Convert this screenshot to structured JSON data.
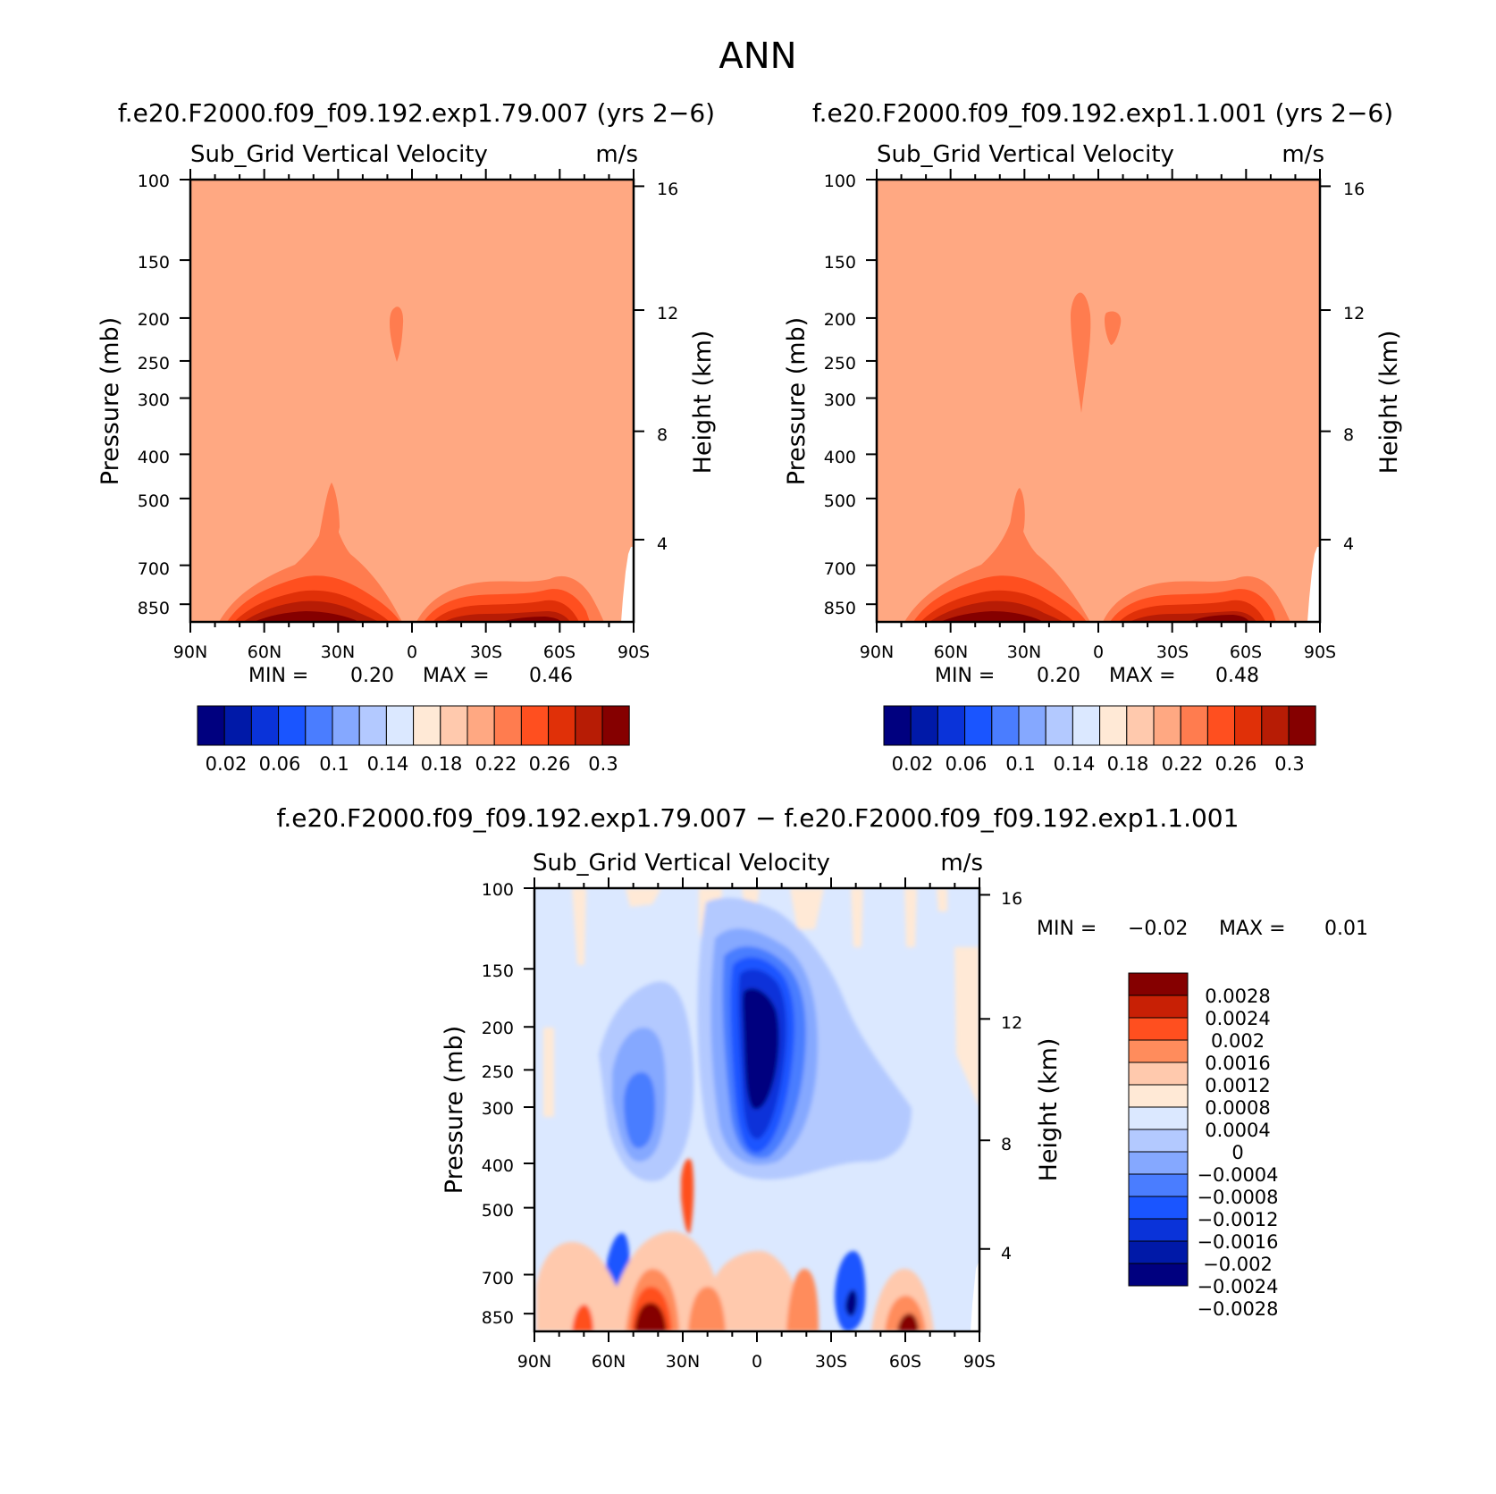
{
  "title": "ANN",
  "colors": {
    "blue_red_16": [
      "#00007f",
      "#0019a8",
      "#0a33d9",
      "#1a55ff",
      "#4a7dff",
      "#85a8ff",
      "#b3c9ff",
      "#dbe8ff",
      "#ffe9d6",
      "#ffc9ad",
      "#ffa882",
      "#ff7c4f",
      "#ff4f1f",
      "#e03008",
      "#b71c05",
      "#850000"
    ],
    "diff_14": [
      "#00007f",
      "#0019a8",
      "#0a33d9",
      "#1a55ff",
      "#4a7dff",
      "#85a8ff",
      "#b3c9ff",
      "#dbe8ff",
      "#ffe9d6",
      "#ffc9ad",
      "#ff8c5c",
      "#ff4f1f",
      "#c82005",
      "#850000"
    ]
  },
  "chart_data": [
    {
      "type": "heatmap",
      "title": "f.e20.F2000.f09_f09.192.exp1.79.007 (yrs 2−6)",
      "field": "Sub_Grid Vertical Velocity",
      "units": "m/s",
      "xlabel": "",
      "ylabel": "Pressure (mb)",
      "y2label": "Height (km)",
      "xticks": [
        "90N",
        "60N",
        "30N",
        "0",
        "30S",
        "60S",
        "90S"
      ],
      "yticks": [
        "100",
        "150",
        "200",
        "250",
        "300",
        "400",
        "500",
        "700",
        "850"
      ],
      "y2ticks": [
        "16",
        "12",
        "8",
        "4"
      ],
      "ylim": [
        100,
        1000
      ],
      "y_scale": "log",
      "min_label": "MIN =",
      "min_value": "0.20",
      "max_label": "MAX =",
      "max_value": "0.46",
      "colorbar_labels": [
        "0.02",
        "0.06",
        "0.1",
        "0.14",
        "0.18",
        "0.22",
        "0.26",
        "0.3"
      ],
      "background_value": 0.21,
      "features": [
        {
          "kind": "max_near_surface_NH",
          "lat_center": 40,
          "value": 0.3
        },
        {
          "kind": "max_near_surface_SH",
          "lat_center": -55,
          "value": 0.3
        },
        {
          "kind": "plume_upper",
          "lat_center": 8,
          "value": 0.22
        }
      ]
    },
    {
      "type": "heatmap",
      "title": "f.e20.F2000.f09_f09.192.exp1.1.001 (yrs 2−6)",
      "field": "Sub_Grid Vertical Velocity",
      "units": "m/s",
      "xlabel": "",
      "ylabel": "Pressure (mb)",
      "y2label": "Height (km)",
      "xticks": [
        "90N",
        "60N",
        "30N",
        "0",
        "30S",
        "60S",
        "90S"
      ],
      "yticks": [
        "100",
        "150",
        "200",
        "250",
        "300",
        "400",
        "500",
        "700",
        "850"
      ],
      "y2ticks": [
        "16",
        "12",
        "8",
        "4"
      ],
      "ylim": [
        100,
        1000
      ],
      "y_scale": "log",
      "min_label": "MIN =",
      "min_value": "0.20",
      "max_label": "MAX =",
      "max_value": "0.48",
      "colorbar_labels": [
        "0.02",
        "0.06",
        "0.1",
        "0.14",
        "0.18",
        "0.22",
        "0.26",
        "0.3"
      ],
      "background_value": 0.21,
      "features": [
        {
          "kind": "max_near_surface_NH",
          "lat_center": 40,
          "value": 0.3
        },
        {
          "kind": "max_near_surface_SH",
          "lat_center": -55,
          "value": 0.3
        },
        {
          "kind": "plume_upper",
          "lat_center": 5,
          "value": 0.22
        }
      ]
    },
    {
      "type": "heatmap",
      "title": "f.e20.F2000.f09_f09.192.exp1.79.007 − f.e20.F2000.f09_f09.192.exp1.1.001",
      "field": "Sub_Grid Vertical Velocity",
      "units": "m/s",
      "xlabel": "",
      "ylabel": "Pressure (mb)",
      "y2label": "Height (km)",
      "xticks": [
        "90N",
        "60N",
        "30N",
        "0",
        "30S",
        "60S",
        "90S"
      ],
      "yticks": [
        "100",
        "150",
        "200",
        "250",
        "300",
        "400",
        "500",
        "700",
        "850"
      ],
      "y2ticks": [
        "16",
        "12",
        "8",
        "4"
      ],
      "ylim": [
        100,
        1000
      ],
      "y_scale": "log",
      "min_label": "MIN =",
      "min_value": "−0.02",
      "max_label": "MAX =",
      "max_value": "0.01",
      "colorbar_labels": [
        "0.0028",
        "0.0024",
        "0.002",
        "0.0016",
        "0.0012",
        "0.0008",
        "0.0004",
        "0",
        "−0.0004",
        "−0.0008",
        "−0.0012",
        "−0.0016",
        "−0.002",
        "−0.0024",
        "−0.0028"
      ],
      "background_value": -0.0002,
      "features": [
        {
          "kind": "min_upper_tropics",
          "lat_center": 0,
          "value": -0.0028
        },
        {
          "kind": "max_near_surface_NH",
          "lat_center": 47,
          "value": 0.0028
        },
        {
          "kind": "max_near_surface_SH",
          "lat_center": -60,
          "value": 0.0024
        }
      ]
    }
  ]
}
